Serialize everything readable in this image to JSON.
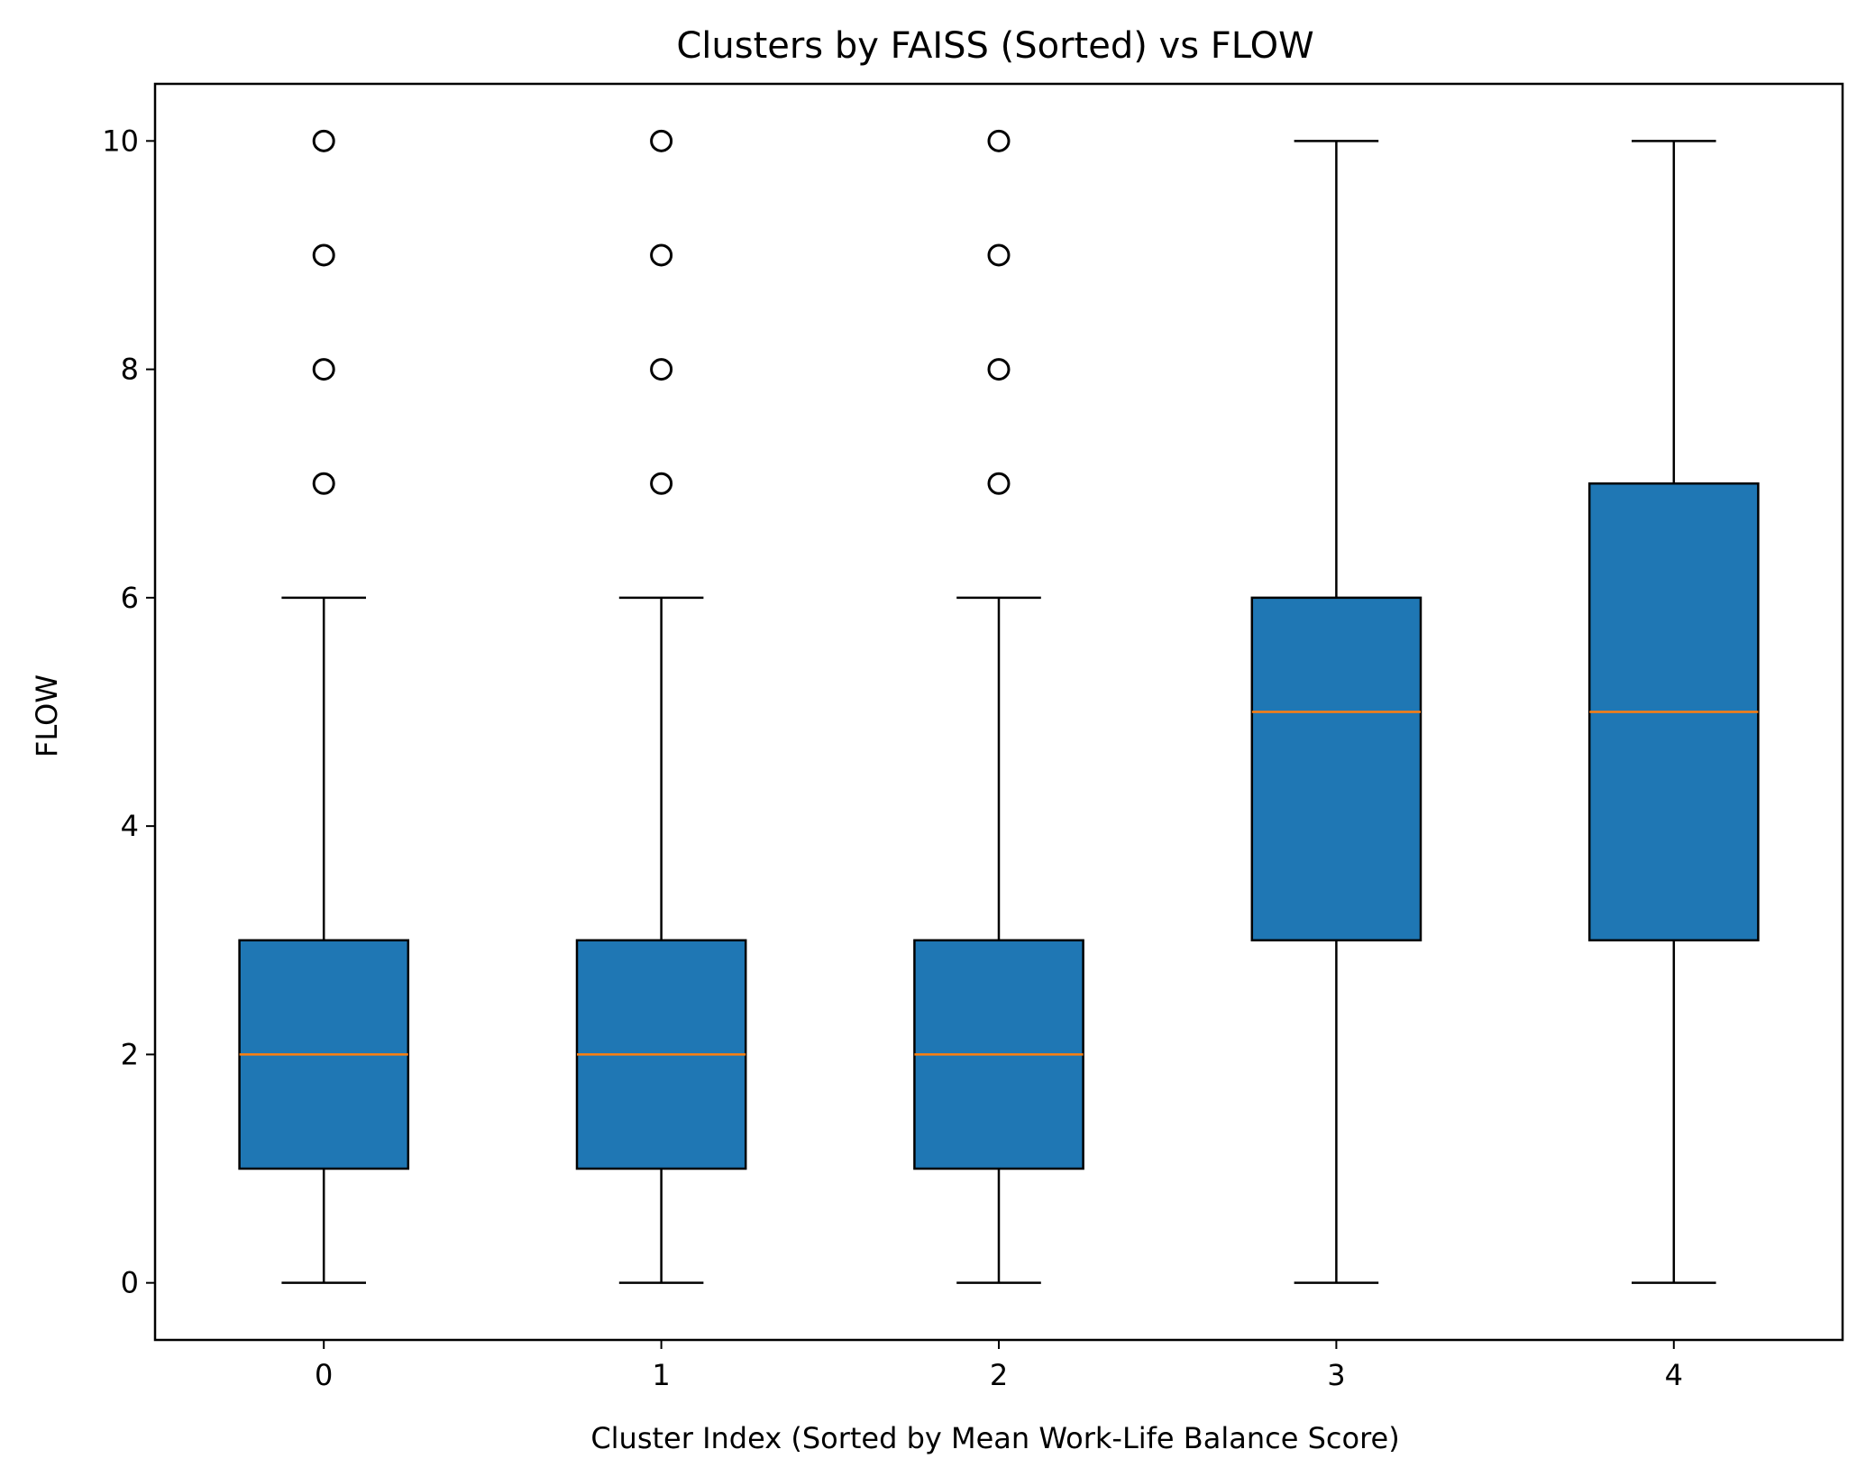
{
  "chart_data": {
    "type": "box",
    "title": "Clusters by FAISS (Sorted) vs FLOW",
    "xlabel": "Cluster Index (Sorted by Mean Work-Life Balance Score)",
    "ylabel": "FLOW",
    "categories": [
      "0",
      "1",
      "2",
      "3",
      "4"
    ],
    "xlim": [
      -0.5,
      4.5
    ],
    "ylim": [
      -0.5,
      10.5
    ],
    "yticks": [
      0,
      2,
      4,
      6,
      8,
      10
    ],
    "grid": false,
    "legend": "none",
    "boxes": [
      {
        "category": "0",
        "whisker_low": 0,
        "q1": 1,
        "median": 2,
        "q3": 3,
        "whisker_high": 6,
        "outliers": [
          7,
          8,
          9,
          10
        ]
      },
      {
        "category": "1",
        "whisker_low": 0,
        "q1": 1,
        "median": 2,
        "q3": 3,
        "whisker_high": 6,
        "outliers": [
          7,
          8,
          9,
          10
        ]
      },
      {
        "category": "2",
        "whisker_low": 0,
        "q1": 1,
        "median": 2,
        "q3": 3,
        "whisker_high": 6,
        "outliers": [
          7,
          8,
          9,
          10
        ]
      },
      {
        "category": "3",
        "whisker_low": 0,
        "q1": 3,
        "median": 5,
        "q3": 6,
        "whisker_high": 10,
        "outliers": []
      },
      {
        "category": "4",
        "whisker_low": 0,
        "q1": 3,
        "median": 5,
        "q3": 7,
        "whisker_high": 10,
        "outliers": []
      }
    ],
    "colors": {
      "box_fill": "#1f77b4",
      "median": "#ff7f0e",
      "lines": "#000000"
    }
  }
}
